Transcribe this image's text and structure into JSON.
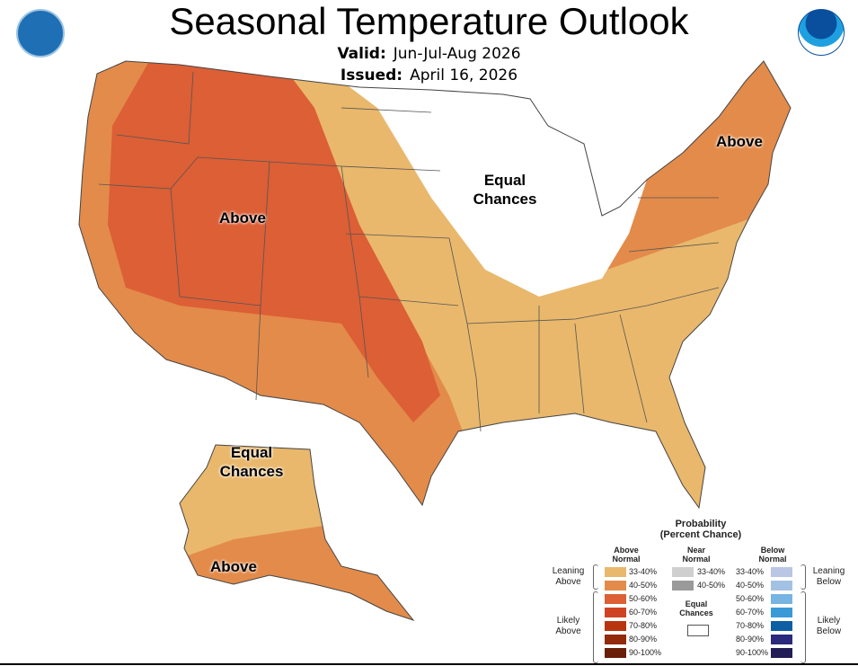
{
  "title": "Seasonal Temperature Outlook",
  "valid": {
    "label": "Valid:",
    "value": "Jun-Jul-Aug 2026"
  },
  "issued": {
    "label": "Issued:",
    "value": "April 16, 2026"
  },
  "logos": {
    "left": "Department of Commerce seal",
    "right": "NOAA"
  },
  "map_labels": {
    "west": "Above",
    "midwest_line1": "Equal",
    "midwest_line2": "Chances",
    "northeast": "Above",
    "alaska_top_line1": "Equal",
    "alaska_top_line2": "Chances",
    "alaska_bottom": "Above"
  },
  "colors": {
    "above_33_40": "#e9b86c",
    "above_40_50": "#e38b4a",
    "above_50_60": "#dc5f36",
    "above_60_70": "#cf4324",
    "above_70_80": "#b8340f",
    "above_80_90": "#922a0c",
    "above_90_100": "#6a1f08",
    "near_33_40": "#cfcfcf",
    "near_40_50": "#9a9a9a",
    "below_33_40": "#b9c6e4",
    "below_40_50": "#a3c2e3",
    "below_50_60": "#76b4e2",
    "below_60_70": "#3a9ad8",
    "below_70_80": "#0d5ea3",
    "below_80_90": "#2b2a7d",
    "below_90_100": "#221d55"
  },
  "legend": {
    "title_line1": "Probability",
    "title_line2": "(Percent Chance)",
    "above_header_1": "Above",
    "above_header_2": "Normal",
    "near_header_1": "Near",
    "near_header_2": "Normal",
    "below_header_1": "Below",
    "below_header_2": "Normal",
    "leaning_above_1": "Leaning",
    "leaning_above_2": "Above",
    "likely_above_1": "Likely",
    "likely_above_2": "Above",
    "leaning_below_1": "Leaning",
    "leaning_below_2": "Below",
    "likely_below_1": "Likely",
    "likely_below_2": "Below",
    "equal_1": "Equal",
    "equal_2": "Chances",
    "ranges": [
      "33-40%",
      "40-50%",
      "50-60%",
      "60-70%",
      "70-80%",
      "80-90%",
      "90-100%"
    ],
    "near_ranges": [
      "33-40%",
      "40-50%"
    ]
  }
}
